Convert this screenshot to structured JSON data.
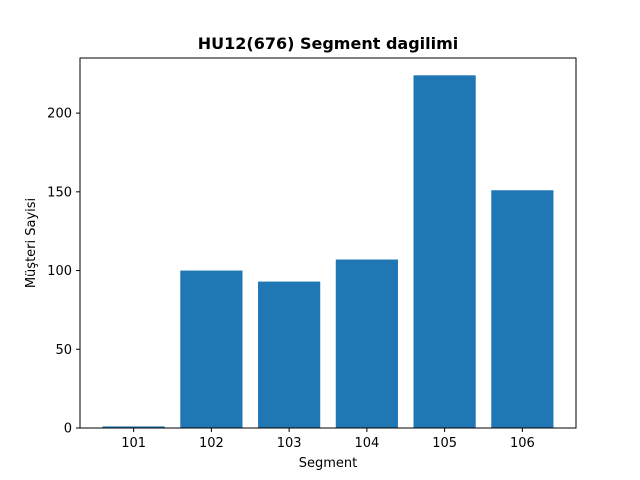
{
  "chart_data": {
    "type": "bar",
    "title": "HU12(676) Segment dagilimi",
    "xlabel": "Segment",
    "ylabel": "Müşteri Sayisi",
    "categories": [
      "101",
      "102",
      "103",
      "104",
      "105",
      "106"
    ],
    "values": [
      1,
      100,
      93,
      107,
      224,
      151
    ],
    "ylim": [
      0,
      235
    ],
    "yticks": [
      0,
      50,
      100,
      150,
      200
    ],
    "bar_color": "#1f77b4",
    "grid": false,
    "legend": "none"
  }
}
